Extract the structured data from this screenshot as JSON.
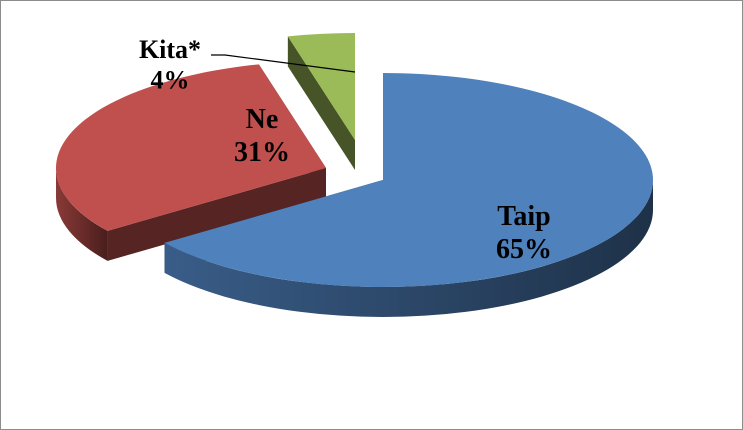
{
  "chart_data": {
    "type": "pie",
    "style": "3d-exploded",
    "slices": [
      {
        "label": "Taip",
        "value": 65,
        "value_label": "65%",
        "color": "#4F81BD"
      },
      {
        "label": "Ne",
        "value": 31,
        "value_label": "31%",
        "color": "#C0504D"
      },
      {
        "label": "Kita*",
        "value": 4,
        "value_label": "4%",
        "color": "#9BBB59"
      }
    ],
    "title": "",
    "legend": "none",
    "data_labels": "category-and-percent"
  }
}
